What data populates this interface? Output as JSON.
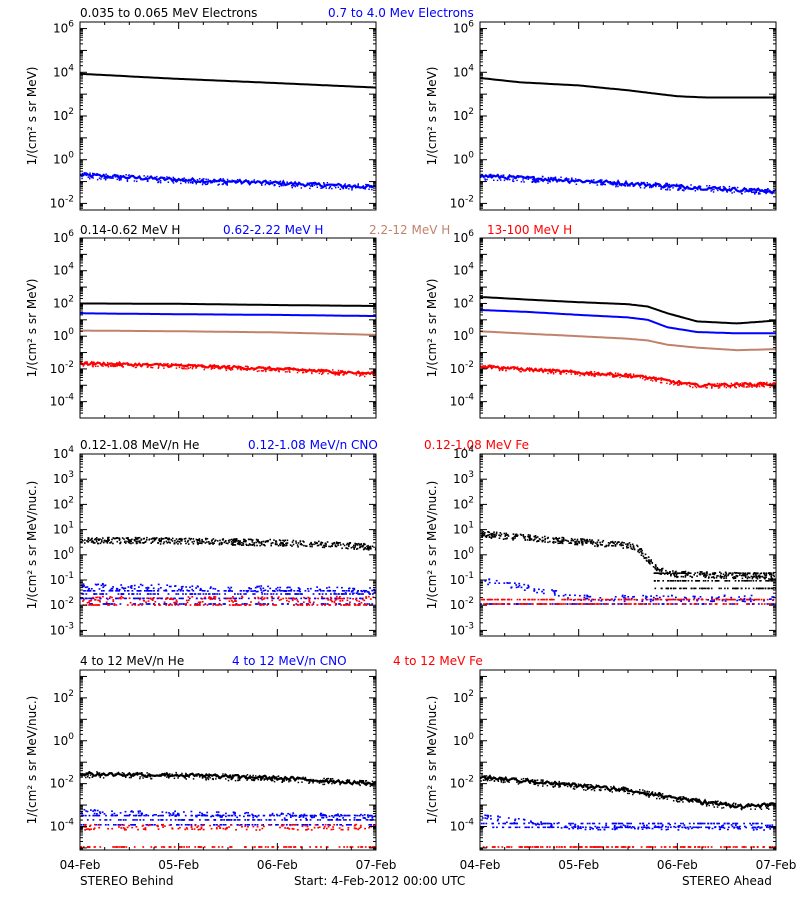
{
  "colors": {
    "black": "#000000",
    "blue": "#0000ff",
    "tan": "#c0826c",
    "red": "#ff0000",
    "axis": "#000000"
  },
  "footer": {
    "left": "STEREO Behind",
    "center": "Start:  4-Feb-2012 00:00 UTC",
    "right": "STEREO Ahead"
  },
  "x_ticks": [
    "04-Feb",
    "05-Feb",
    "06-Feb",
    "07-Feb"
  ],
  "chart_data": [
    {
      "type": "scatter",
      "row": "electrons",
      "spacecraft": "STEREO Behind",
      "legend": [
        "0.035 to 0.065 MeV Electrons",
        "0.7 to 4.0 Mev Electrons"
      ],
      "ylabel": "1/(cm² s sr MeV)",
      "yscale": "log",
      "ylim": [
        0.005,
        2000000
      ],
      "yticks": [
        {
          "v": 0.01,
          "m": "-2"
        },
        {
          "v": 1,
          "m": "0"
        },
        {
          "v": 100,
          "m": "2"
        },
        {
          "v": 10000,
          "m": "4"
        },
        {
          "v": 1000000,
          "m": "6"
        }
      ],
      "x": [
        "2012-02-04",
        "2012-02-07"
      ],
      "series": [
        {
          "name": "0.035 to 0.065 MeV Electrons",
          "color": "black",
          "style": "line",
          "points": [
            [
              0,
              8500
            ],
            [
              1,
              5000
            ],
            [
              2,
              3200
            ],
            [
              3,
              2000
            ]
          ]
        },
        {
          "name": "0.7 to 4.0 Mev Electrons",
          "color": "blue",
          "style": "noisy-line",
          "points": [
            [
              0,
              0.2
            ],
            [
              1,
              0.12
            ],
            [
              2,
              0.085
            ],
            [
              3,
              0.055
            ]
          ]
        }
      ]
    },
    {
      "type": "scatter",
      "row": "electrons",
      "spacecraft": "STEREO Ahead",
      "ylabel": "1/(cm² s sr MeV)",
      "yscale": "log",
      "ylim": [
        0.005,
        2000000
      ],
      "yticks": [
        {
          "v": 0.01,
          "m": "-2"
        },
        {
          "v": 1,
          "m": "0"
        },
        {
          "v": 100,
          "m": "2"
        },
        {
          "v": 10000,
          "m": "4"
        },
        {
          "v": 1000000,
          "m": "6"
        }
      ],
      "x": [
        "2012-02-04",
        "2012-02-07"
      ],
      "series": [
        {
          "name": "0.035 to 0.065 MeV Electrons",
          "color": "black",
          "style": "line",
          "points": [
            [
              0,
              5500
            ],
            [
              0.4,
              3500
            ],
            [
              1,
              2500
            ],
            [
              1.5,
              1500
            ],
            [
              2,
              800
            ],
            [
              2.3,
              700
            ],
            [
              3,
              700
            ]
          ]
        },
        {
          "name": "0.7 to 4.0 Mev Electrons",
          "color": "blue",
          "style": "noisy-line",
          "points": [
            [
              0,
              0.18
            ],
            [
              1,
              0.11
            ],
            [
              2,
              0.06
            ],
            [
              3,
              0.035
            ]
          ]
        }
      ]
    },
    {
      "type": "scatter",
      "row": "protons",
      "spacecraft": "STEREO Behind",
      "legend": [
        "0.14-0.62 MeV H",
        "0.62-2.22 MeV H",
        "2.2-12 MeV H",
        "13-100 MeV H"
      ],
      "ylabel": "1/(cm² s sr MeV)",
      "yscale": "log",
      "ylim": [
        1e-05,
        1000000
      ],
      "yticks": [
        {
          "v": 0.0001,
          "m": "-4"
        },
        {
          "v": 0.01,
          "m": "-2"
        },
        {
          "v": 1,
          "m": "0"
        },
        {
          "v": 100,
          "m": "2"
        },
        {
          "v": 10000,
          "m": "4"
        },
        {
          "v": 1000000,
          "m": "6"
        }
      ],
      "x": [
        "2012-02-04",
        "2012-02-07"
      ],
      "series": [
        {
          "name": "0.14-0.62 MeV H",
          "color": "black",
          "style": "line",
          "points": [
            [
              0,
              100
            ],
            [
              1,
              95
            ],
            [
              2,
              80
            ],
            [
              3,
              70
            ]
          ]
        },
        {
          "name": "0.62-2.22 MeV H",
          "color": "blue",
          "style": "line",
          "points": [
            [
              0,
              25
            ],
            [
              1,
              22
            ],
            [
              2,
              20
            ],
            [
              3,
              17
            ]
          ]
        },
        {
          "name": "2.2-12 MeV H",
          "color": "tan",
          "style": "line",
          "points": [
            [
              0,
              2.2
            ],
            [
              1,
              2.0
            ],
            [
              2,
              1.7
            ],
            [
              3,
              1.2
            ]
          ]
        },
        {
          "name": "13-100 MeV H",
          "color": "red",
          "style": "noisy-line",
          "points": [
            [
              0,
              0.022
            ],
            [
              1,
              0.016
            ],
            [
              2,
              0.01
            ],
            [
              3,
              0.005
            ]
          ]
        }
      ]
    },
    {
      "type": "scatter",
      "row": "protons",
      "spacecraft": "STEREO Ahead",
      "ylabel": "1/(cm² s sr MeV)",
      "yscale": "log",
      "ylim": [
        1e-05,
        1000000
      ],
      "yticks": [
        {
          "v": 0.0001,
          "m": "-4"
        },
        {
          "v": 0.01,
          "m": "-2"
        },
        {
          "v": 1,
          "m": "0"
        },
        {
          "v": 100,
          "m": "2"
        },
        {
          "v": 10000,
          "m": "4"
        },
        {
          "v": 1000000,
          "m": "6"
        }
      ],
      "x": [
        "2012-02-04",
        "2012-02-07"
      ],
      "series": [
        {
          "name": "0.14-0.62 MeV H",
          "color": "black",
          "style": "line",
          "points": [
            [
              0,
              250
            ],
            [
              0.5,
              170
            ],
            [
              1,
              120
            ],
            [
              1.5,
              90
            ],
            [
              1.7,
              65
            ],
            [
              1.9,
              25
            ],
            [
              2.2,
              8
            ],
            [
              2.6,
              6
            ],
            [
              3,
              9
            ]
          ]
        },
        {
          "name": "0.62-2.22 MeV H",
          "color": "blue",
          "style": "line",
          "points": [
            [
              0,
              40
            ],
            [
              0.5,
              30
            ],
            [
              1,
              20
            ],
            [
              1.5,
              14
            ],
            [
              1.7,
              10
            ],
            [
              1.9,
              3.5
            ],
            [
              2.2,
              1.8
            ],
            [
              2.6,
              1.5
            ],
            [
              3,
              1.5
            ]
          ]
        },
        {
          "name": "2.2-12 MeV H",
          "color": "tan",
          "style": "line",
          "points": [
            [
              0,
              2
            ],
            [
              0.5,
              1.4
            ],
            [
              1,
              1
            ],
            [
              1.5,
              0.7
            ],
            [
              1.7,
              0.55
            ],
            [
              1.9,
              0.3
            ],
            [
              2.2,
              0.2
            ],
            [
              2.6,
              0.14
            ],
            [
              3,
              0.16
            ]
          ]
        },
        {
          "name": "13-100 MeV H",
          "color": "red",
          "style": "noisy-line",
          "points": [
            [
              0,
              0.015
            ],
            [
              0.5,
              0.009
            ],
            [
              1,
              0.006
            ],
            [
              1.5,
              0.004
            ],
            [
              1.7,
              0.003
            ],
            [
              2.0,
              0.0015
            ],
            [
              2.2,
              0.001
            ],
            [
              3,
              0.0012
            ]
          ]
        }
      ]
    },
    {
      "type": "scatter",
      "row": "heavy-low",
      "spacecraft": "STEREO Behind",
      "legend": [
        "0.12-1.08 MeV/n He",
        "0.12-1.08 MeV/n CNO",
        "0.12-1.08 MeV Fe"
      ],
      "ylabel": "1/(cm² s sr MeV/nuc.)",
      "yscale": "log",
      "ylim": [
        0.0006,
        10000
      ],
      "yticks": [
        {
          "v": 0.001,
          "m": "-3"
        },
        {
          "v": 0.01,
          "m": "-2"
        },
        {
          "v": 0.1,
          "m": "-1"
        },
        {
          "v": 1,
          "m": "0"
        },
        {
          "v": 10,
          "m": "1"
        },
        {
          "v": 100,
          "m": "2"
        },
        {
          "v": 1000,
          "m": "3"
        },
        {
          "v": 10000,
          "m": "4"
        }
      ],
      "x": [
        "2012-02-04",
        "2012-02-07"
      ],
      "series": [
        {
          "name": "0.12-1.08 MeV/n He",
          "color": "black",
          "style": "dots",
          "points": [
            [
              0,
              4
            ],
            [
              1,
              3.8
            ],
            [
              2,
              3.2
            ],
            [
              3,
              2.2
            ]
          ]
        },
        {
          "name": "0.12-1.08 MeV/n CNO",
          "color": "blue",
          "style": "levels",
          "points": [
            [
              0,
              0.06
            ],
            [
              3,
              0.04
            ]
          ],
          "levels": [
            0.06,
            0.04,
            0.03,
            0.02,
            0.012
          ]
        },
        {
          "name": "0.12-1.08 MeV Fe",
          "color": "red",
          "style": "levels",
          "points": [
            [
              0,
              0.018
            ],
            [
              3,
              0.018
            ]
          ],
          "levels": [
            0.018,
            0.011
          ]
        }
      ]
    },
    {
      "type": "scatter",
      "row": "heavy-low",
      "spacecraft": "STEREO Ahead",
      "ylabel": "1/(cm² s sr MeV/nuc.)",
      "yscale": "log",
      "ylim": [
        0.0006,
        10000
      ],
      "yticks": [
        {
          "v": 0.001,
          "m": "-3"
        },
        {
          "v": 0.01,
          "m": "-2"
        },
        {
          "v": 0.1,
          "m": "-1"
        },
        {
          "v": 1,
          "m": "0"
        },
        {
          "v": 10,
          "m": "1"
        },
        {
          "v": 100,
          "m": "2"
        },
        {
          "v": 1000,
          "m": "3"
        },
        {
          "v": 10000,
          "m": "4"
        }
      ],
      "x": [
        "2012-02-04",
        "2012-02-07"
      ],
      "series": [
        {
          "name": "0.12-1.08 MeV/n He",
          "color": "black",
          "style": "dots",
          "points": [
            [
              0,
              7
            ],
            [
              0.5,
              5
            ],
            [
              1,
              3.5
            ],
            [
              1.5,
              2.5
            ],
            [
              1.6,
              1.8
            ],
            [
              1.8,
              0.25
            ],
            [
              2,
              0.18
            ],
            [
              3,
              0.15
            ]
          ],
          "levels": [
            0.2,
            0.1,
            0.05
          ]
        },
        {
          "name": "0.12-1.08 MeV/n CNO",
          "color": "blue",
          "style": "levels",
          "points": [
            [
              0,
              0.1
            ],
            [
              0.5,
              0.05
            ],
            [
              1,
              0.02
            ]
          ],
          "levels": [
            0.02,
            0.012
          ]
        },
        {
          "name": "0.12-1.08 MeV Fe",
          "color": "red",
          "style": "levels",
          "points": [
            [
              0,
              0.018
            ]
          ],
          "levels": [
            0.018,
            0.012
          ]
        }
      ]
    },
    {
      "type": "scatter",
      "row": "heavy-high",
      "spacecraft": "STEREO Behind",
      "legend": [
        "4 to 12 MeV/n He",
        "4 to 12 MeV/n CNO",
        "4 to 12 MeV Fe"
      ],
      "ylabel": "1/(cm² s sr MeV/nuc.)",
      "yscale": "log",
      "ylim": [
        8e-06,
        2000
      ],
      "yticks": [
        {
          "v": 0.0001,
          "m": "-4"
        },
        {
          "v": 0.01,
          "m": "-2"
        },
        {
          "v": 1,
          "m": "0"
        },
        {
          "v": 100,
          "m": "2"
        }
      ],
      "x": [
        "2012-02-04",
        "2012-02-07"
      ],
      "series": [
        {
          "name": "4 to 12 MeV/n He",
          "color": "black",
          "style": "noisy-line",
          "points": [
            [
              0,
              0.028
            ],
            [
              1,
              0.025
            ],
            [
              2,
              0.018
            ],
            [
              3,
              0.01
            ]
          ]
        },
        {
          "name": "4 to 12 MeV/n CNO",
          "color": "blue",
          "style": "levels",
          "points": [
            [
              0,
              0.0005
            ],
            [
              3,
              0.0003
            ]
          ],
          "levels": [
            0.0005,
            0.00035,
            0.00022,
            0.00013
          ]
        },
        {
          "name": "4 to 12 MeV Fe",
          "color": "red",
          "style": "levels",
          "points": [
            [
              0,
              0.0001
            ],
            [
              3,
              0.0001
            ]
          ],
          "levels": [
            0.0001,
            1.2e-05
          ]
        }
      ]
    },
    {
      "type": "scatter",
      "row": "heavy-high",
      "spacecraft": "STEREO Ahead",
      "ylabel": "1/(cm² s sr MeV/nuc.)",
      "yscale": "log",
      "ylim": [
        8e-06,
        2000
      ],
      "yticks": [
        {
          "v": 0.0001,
          "m": "-4"
        },
        {
          "v": 0.01,
          "m": "-2"
        },
        {
          "v": 1,
          "m": "0"
        },
        {
          "v": 100,
          "m": "2"
        }
      ],
      "x": [
        "2012-02-04",
        "2012-02-07"
      ],
      "series": [
        {
          "name": "4 to 12 MeV/n He",
          "color": "black",
          "style": "noisy-line",
          "points": [
            [
              0,
              0.02
            ],
            [
              0.5,
              0.013
            ],
            [
              1,
              0.008
            ],
            [
              1.5,
              0.005
            ],
            [
              1.8,
              0.003
            ],
            [
              2.2,
              0.0015
            ],
            [
              2.6,
              0.0009
            ],
            [
              3,
              0.001
            ]
          ]
        },
        {
          "name": "4 to 12 MeV/n CNO",
          "color": "blue",
          "style": "levels",
          "points": [
            [
              0,
              0.0003
            ],
            [
              1,
              0.0001
            ]
          ],
          "levels": [
            0.0003,
            0.00015,
            0.0001
          ]
        },
        {
          "name": "4 to 12 MeV Fe",
          "color": "red",
          "style": "levels",
          "points": [
            [
              0,
              1.2e-05
            ]
          ],
          "levels": [
            1.2e-05
          ]
        }
      ]
    }
  ]
}
